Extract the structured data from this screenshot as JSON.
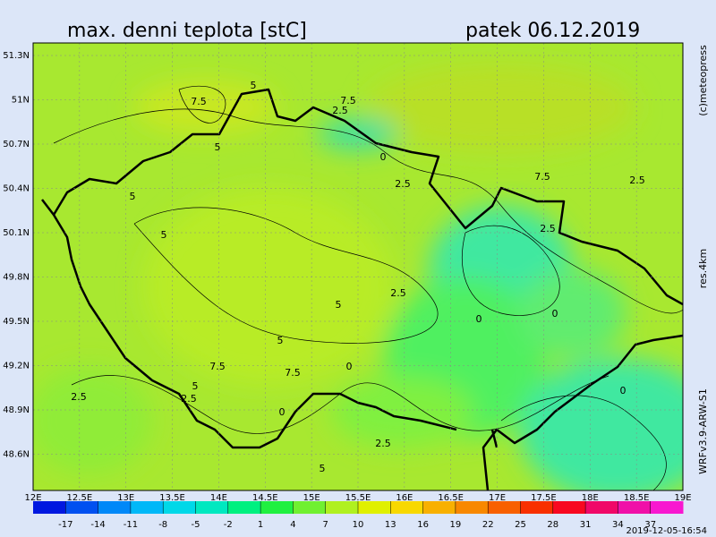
{
  "header": {
    "title": "max. denni teplota [stC]",
    "date": "patek 06.12.2019"
  },
  "side": {
    "credit": "(c)meteopress",
    "resolution": "res.4km",
    "model": "WRFv3.9-ARW-S1"
  },
  "timestamp": "2019-12-05-16:54",
  "lat_labels": [
    "51.3N",
    "51N",
    "50.7N",
    "50.4N",
    "50.1N",
    "49.8N",
    "49.5N",
    "49.2N",
    "48.9N",
    "48.6N"
  ],
  "lon_labels": [
    "12E",
    "12.5E",
    "13E",
    "13.5E",
    "14E",
    "14.5E",
    "15E",
    "15.5E",
    "16E",
    "16.5E",
    "17E",
    "17.5E",
    "18E",
    "18.5E",
    "19E"
  ],
  "contour_labels": [
    "7.5",
    "5",
    "5",
    "7.5",
    "2.5",
    "0",
    "2.5",
    "7.5",
    "2.5",
    "2.5",
    "5",
    "2.5",
    "5",
    "0",
    "0",
    "5",
    "7.5",
    "7.5",
    "5",
    "2.5",
    "2.5",
    "0",
    "0",
    "2.5",
    "5",
    "0",
    "5"
  ],
  "colorbar": {
    "xlim": [
      -20,
      40
    ],
    "ticks": [
      -17,
      -14,
      -11,
      -8,
      -5,
      -2,
      1,
      4,
      7,
      10,
      13,
      16,
      19,
      22,
      25,
      28,
      31,
      34,
      37
    ],
    "colors": [
      "#0018e0",
      "#0050f0",
      "#0088f8",
      "#00b8f8",
      "#00d8e8",
      "#00e8c0",
      "#00f080",
      "#20f040",
      "#70f030",
      "#b0f020",
      "#e0f000",
      "#f8d800",
      "#f8b000",
      "#f88800",
      "#f86000",
      "#f83000",
      "#f80820",
      "#f00868",
      "#f010a8",
      "#f818d0"
    ]
  }
}
